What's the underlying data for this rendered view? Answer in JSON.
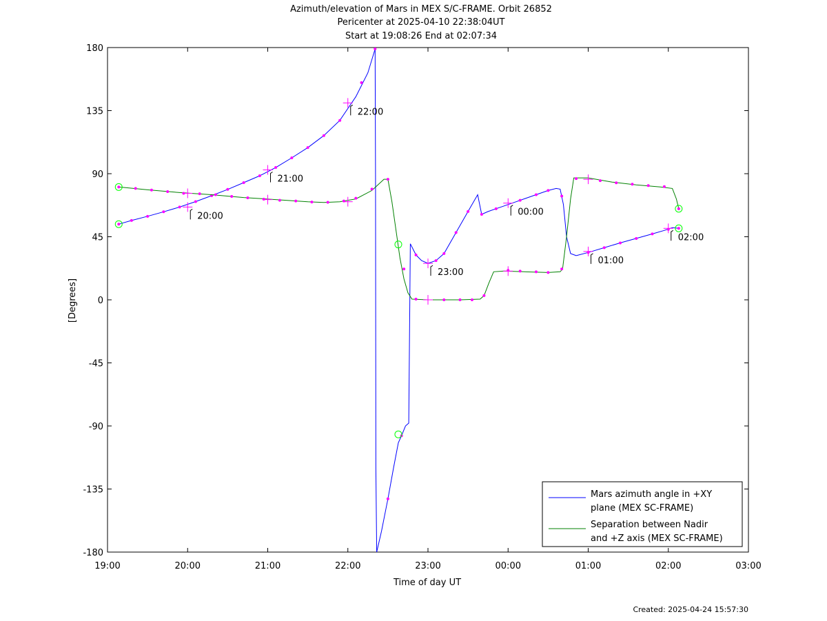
{
  "chart_data": {
    "type": "line",
    "title": [
      "Azimuth/elevation of Mars in MEX S/C-FRAME.  Orbit 26852",
      "Pericenter at 2025-04-10 22:38:04UT",
      "Start at 19:08:26 End at 02:07:34"
    ],
    "xlabel": "Time of day UT",
    "ylabel": "[Degrees]",
    "xlim": [
      19,
      27
    ],
    "ylim": [
      -180,
      180
    ],
    "x_ticks": [
      19,
      20,
      21,
      22,
      23,
      24,
      25,
      26,
      27
    ],
    "x_tick_labels": [
      "19:00",
      "20:00",
      "21:00",
      "22:00",
      "23:00",
      "00:00",
      "01:00",
      "02:00",
      "03:00"
    ],
    "y_ticks": [
      180,
      135,
      90,
      45,
      0,
      -45,
      -90,
      -135,
      -180
    ],
    "y_tick_labels": [
      "180",
      "135",
      "90",
      "45",
      "0",
      "-45",
      "-90",
      "-135",
      "-180"
    ],
    "grid": false,
    "legend_position": "bottom-right",
    "series": [
      {
        "name": "Mars azimuth angle in +XY plane (MEX SC-FRAME)",
        "legend_lines": [
          "Mars azimuth angle in +XY",
          "plane (MEX SC-FRAME)"
        ],
        "color": "#0000ff",
        "segments": [
          [
            [
              19.14,
              54
            ],
            [
              19.3,
              56.6
            ],
            [
              19.5,
              59.6
            ],
            [
              19.7,
              62.8
            ],
            [
              19.9,
              66.2
            ],
            [
              20.1,
              70.1
            ],
            [
              20.3,
              74.3
            ],
            [
              20.5,
              78.8
            ],
            [
              20.7,
              83.6
            ],
            [
              20.9,
              88.5
            ],
            [
              21.1,
              94.4
            ],
            [
              21.3,
              101.3
            ],
            [
              21.5,
              108.6
            ],
            [
              21.7,
              117.2
            ],
            [
              21.9,
              128
            ],
            [
              22.1,
              145
            ],
            [
              22.25,
              162
            ],
            [
              22.34,
              179
            ]
          ],
          [
            [
              22.34,
              179
            ],
            [
              22.345,
              88
            ],
            [
              22.35,
              -120
            ],
            [
              22.36,
              -180
            ]
          ],
          [
            [
              22.36,
              -180
            ],
            [
              22.42,
              -165
            ],
            [
              22.5,
              -142
            ],
            [
              22.57,
              -120
            ],
            [
              22.63,
              -102
            ],
            [
              22.67,
              -97
            ],
            [
              22.72,
              -90
            ],
            [
              22.76,
              -88
            ],
            [
              22.78,
              40
            ]
          ],
          [
            [
              22.78,
              40
            ],
            [
              22.85,
              32
            ],
            [
              22.92,
              28
            ],
            [
              23.0,
              26
            ],
            [
              23.1,
              28
            ],
            [
              23.2,
              33
            ],
            [
              23.35,
              48
            ],
            [
              23.5,
              63
            ],
            [
              23.62,
              75
            ],
            [
              23.67,
              61
            ]
          ],
          [
            [
              23.67,
              61
            ],
            [
              23.75,
              63
            ],
            [
              23.85,
              65
            ],
            [
              23.95,
              67
            ],
            [
              24.1,
              70
            ],
            [
              24.3,
              74
            ],
            [
              24.5,
              78
            ],
            [
              24.6,
              79.5
            ],
            [
              24.65,
              79
            ],
            [
              24.69,
              68
            ],
            [
              24.73,
              45
            ],
            [
              24.78,
              33
            ],
            [
              24.85,
              31.5
            ]
          ],
          [
            [
              24.85,
              31.5
            ],
            [
              25.0,
              33.8
            ],
            [
              25.2,
              37.2
            ],
            [
              25.4,
              40.6
            ],
            [
              25.6,
              43.8
            ],
            [
              25.8,
              47
            ],
            [
              25.95,
              49.5
            ],
            [
              26.05,
              51.5
            ],
            [
              26.13,
              51
            ]
          ]
        ],
        "markers": [
          [
            19.14,
            54
          ],
          [
            19.3,
            56.6
          ],
          [
            19.5,
            59.6
          ],
          [
            19.7,
            62.8
          ],
          [
            19.9,
            66.2
          ],
          [
            20.1,
            70.1
          ],
          [
            20.3,
            74.3
          ],
          [
            20.5,
            78.8
          ],
          [
            20.7,
            83.6
          ],
          [
            20.9,
            88.5
          ],
          [
            21.1,
            94.4
          ],
          [
            21.3,
            101.3
          ],
          [
            21.5,
            108.6
          ],
          [
            21.7,
            117.2
          ],
          [
            21.9,
            128
          ],
          [
            22.17,
            155
          ],
          [
            22.34,
            179
          ],
          [
            22.5,
            -142
          ],
          [
            22.67,
            -97
          ],
          [
            22.85,
            32
          ],
          [
            23.1,
            28
          ],
          [
            23.2,
            33
          ],
          [
            23.35,
            48
          ],
          [
            23.5,
            63
          ],
          [
            23.67,
            61
          ],
          [
            23.85,
            65
          ],
          [
            24.15,
            71
          ],
          [
            24.35,
            75
          ],
          [
            24.5,
            78
          ],
          [
            24.67,
            74
          ],
          [
            25.0,
            33.8
          ],
          [
            25.2,
            37.2
          ],
          [
            25.4,
            40.6
          ],
          [
            25.6,
            43.8
          ],
          [
            25.8,
            47
          ],
          [
            26.0,
            50.3
          ],
          [
            26.13,
            51
          ]
        ],
        "hour_crosses": [
          [
            20,
            66.2
          ],
          [
            21,
            92.7
          ],
          [
            22,
            140.5
          ],
          [
            23,
            26
          ],
          [
            24,
            69
          ],
          [
            25,
            34.5
          ],
          [
            26,
            51
          ]
        ],
        "hour_labels": [
          "20:00",
          "21:00",
          "22:00",
          "23:00",
          "00:00",
          "01:00",
          "02:00"
        ],
        "circles": [
          [
            19.14,
            54
          ],
          [
            22.63,
            -96
          ],
          [
            26.13,
            51
          ]
        ]
      },
      {
        "name": "Separation between Nadir and +Z axis (MEX SC-FRAME)",
        "legend_lines": [
          "Separation between Nadir",
          "and +Z axis (MEX SC-FRAME)"
        ],
        "color": "#008000",
        "segments": [
          [
            [
              19.14,
              80.5
            ],
            [
              19.5,
              78.5
            ],
            [
              19.9,
              76.5
            ],
            [
              20.3,
              75
            ],
            [
              20.7,
              73
            ],
            [
              21.1,
              71.5
            ],
            [
              21.5,
              70
            ],
            [
              21.7,
              69.5
            ],
            [
              21.9,
              70
            ],
            [
              22.1,
              72
            ],
            [
              22.3,
              78
            ],
            [
              22.45,
              86
            ],
            [
              22.5,
              86
            ]
          ],
          [
            [
              22.5,
              86
            ],
            [
              22.55,
              70
            ],
            [
              22.6,
              50
            ],
            [
              22.65,
              30
            ],
            [
              22.7,
              15
            ],
            [
              22.75,
              5
            ],
            [
              22.8,
              0.5
            ],
            [
              23.0,
              0
            ],
            [
              23.4,
              0
            ],
            [
              23.65,
              0.5
            ],
            [
              23.7,
              3
            ],
            [
              23.76,
              12
            ],
            [
              23.82,
              20
            ],
            [
              23.95,
              20.5
            ],
            [
              24.2,
              20
            ],
            [
              24.5,
              19.5
            ],
            [
              24.65,
              20
            ],
            [
              24.68,
              22
            ]
          ],
          [
            [
              24.68,
              22
            ],
            [
              24.73,
              45
            ],
            [
              24.78,
              72
            ],
            [
              24.82,
              87
            ],
            [
              25.0,
              87
            ],
            [
              25.3,
              84
            ],
            [
              25.6,
              82
            ],
            [
              25.9,
              80.5
            ],
            [
              26.05,
              79.5
            ],
            [
              26.1,
              72
            ],
            [
              26.13,
              65
            ]
          ]
        ],
        "markers": [
          [
            19.14,
            80.5
          ],
          [
            19.35,
            79.5
          ],
          [
            19.55,
            78.3
          ],
          [
            19.75,
            77.2
          ],
          [
            19.95,
            76
          ],
          [
            20.15,
            75.7
          ],
          [
            20.35,
            75
          ],
          [
            20.55,
            73.8
          ],
          [
            20.75,
            72.8
          ],
          [
            20.95,
            71.8
          ],
          [
            21.15,
            71
          ],
          [
            21.35,
            70.5
          ],
          [
            21.55,
            69.8
          ],
          [
            21.75,
            69.6
          ],
          [
            21.95,
            70.5
          ],
          [
            22.1,
            72.5
          ],
          [
            22.3,
            79
          ],
          [
            22.5,
            86
          ],
          [
            22.7,
            22
          ],
          [
            22.85,
            0.5
          ],
          [
            23.2,
            0
          ],
          [
            23.4,
            0
          ],
          [
            23.55,
            0
          ],
          [
            23.7,
            3
          ],
          [
            24.0,
            21
          ],
          [
            24.15,
            20.5
          ],
          [
            24.35,
            20
          ],
          [
            24.5,
            19.5
          ],
          [
            24.67,
            22
          ],
          [
            24.85,
            86.5
          ],
          [
            25.15,
            85
          ],
          [
            25.35,
            83.5
          ],
          [
            25.55,
            82.5
          ],
          [
            25.75,
            81.5
          ],
          [
            25.95,
            80.8
          ],
          [
            26.13,
            65
          ]
        ],
        "hour_crosses": [
          [
            20,
            76
          ],
          [
            21,
            71.5
          ],
          [
            22,
            70
          ],
          [
            23,
            0
          ],
          [
            24,
            20.5
          ],
          [
            25,
            86
          ]
        ],
        "circles": [
          [
            19.14,
            80.5
          ],
          [
            22.63,
            39.5
          ],
          [
            26.13,
            65
          ]
        ]
      }
    ]
  },
  "created_text": "Created: 2025-04-24 15:57:30"
}
